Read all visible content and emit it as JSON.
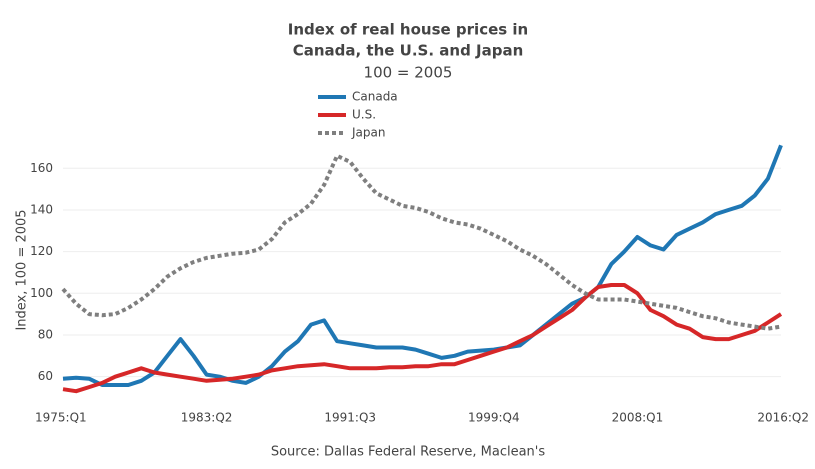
{
  "chart_data": {
    "type": "line",
    "title": [
      "Index of real house prices in",
      "Canada, the U.S. and Japan"
    ],
    "subtitle": "100 = 2005",
    "y_label": "Index, 100 = 2005",
    "source": "Source: Dallas Federal Reserve, Maclean's",
    "categories": [
      "1975:Q1",
      null,
      null,
      null,
      null,
      null,
      null,
      null,
      null,
      null,
      null,
      "1983:Q2",
      null,
      null,
      null,
      null,
      null,
      null,
      null,
      null,
      null,
      null,
      "1991:Q3",
      null,
      null,
      null,
      null,
      null,
      null,
      null,
      null,
      null,
      null,
      "1999:Q4",
      null,
      null,
      null,
      null,
      null,
      null,
      null,
      null,
      null,
      null,
      "2008:Q1",
      null,
      null,
      null,
      null,
      null,
      null,
      null,
      null,
      null,
      null,
      "2016:Q2"
    ],
    "series": [
      {
        "name": "Canada",
        "color": "#1f77b4",
        "dash": "solid",
        "values": [
          59,
          59.5,
          59,
          56,
          56,
          56,
          58,
          62,
          70,
          78,
          70,
          61,
          60,
          58,
          57,
          60,
          65,
          72,
          77,
          85,
          87,
          77,
          76,
          75,
          74,
          74,
          74,
          73,
          71,
          69,
          70,
          72,
          72.5,
          73,
          74,
          75,
          80,
          85,
          90,
          95,
          98,
          103,
          114,
          120,
          127,
          123,
          121,
          128,
          131,
          134,
          138,
          140,
          142,
          147,
          155,
          171
        ]
      },
      {
        "name": "U.S.",
        "color": "#d62728",
        "dash": "solid",
        "values": [
          54,
          53,
          55,
          57,
          60,
          62,
          64,
          62,
          61,
          60,
          59,
          58,
          58.5,
          59,
          60,
          61,
          63,
          64,
          65,
          65.5,
          66,
          65,
          64,
          64,
          64,
          64.5,
          64.5,
          65,
          65,
          66,
          66,
          68,
          70,
          72,
          74,
          77,
          80,
          84,
          88,
          92,
          98,
          103,
          104,
          104,
          100,
          92,
          89,
          85,
          83,
          79,
          78,
          78,
          80,
          82,
          86,
          90
        ]
      },
      {
        "name": "Japan",
        "color": "#7f7f7f",
        "dash": "dot",
        "values": [
          102,
          95,
          90,
          89.5,
          90,
          93,
          97,
          102,
          108,
          112,
          115,
          117,
          118,
          119,
          119.5,
          121,
          126,
          134,
          138,
          143,
          152,
          166,
          163,
          155,
          148,
          145,
          142,
          141,
          139,
          136,
          134,
          133,
          131,
          128,
          125,
          121,
          118,
          114,
          109,
          104,
          100,
          97,
          97,
          97,
          96,
          95,
          94,
          93,
          91,
          89,
          88,
          86,
          85,
          84,
          83,
          84
        ]
      }
    ],
    "ylim": [
      44,
      175
    ],
    "yticks": [
      60,
      80,
      100,
      120,
      140,
      160
    ],
    "grid": true
  }
}
